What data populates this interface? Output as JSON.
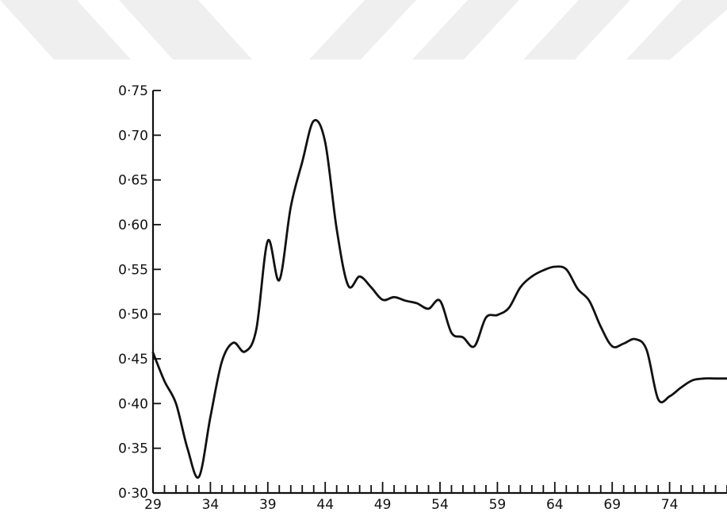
{
  "chart_data": {
    "type": "line",
    "title": "",
    "xlabel": "",
    "ylabel": "",
    "xlim": [
      29,
      79
    ],
    "ylim": [
      0.3,
      0.75
    ],
    "x_major_ticks": [
      29,
      34,
      39,
      44,
      49,
      54,
      59,
      64,
      69,
      74
    ],
    "x_tick_labels": [
      "29",
      "34",
      "39",
      "44",
      "49",
      "54",
      "59",
      "64",
      "69",
      "74"
    ],
    "y_ticks": [
      0.3,
      0.35,
      0.4,
      0.45,
      0.5,
      0.55,
      0.6,
      0.65,
      0.7,
      0.75
    ],
    "y_tick_labels": [
      "0·30",
      "0·35",
      "0·40",
      "0·45",
      "0·50",
      "0·55",
      "0·60",
      "0·65",
      "0·70",
      "0·75"
    ],
    "grid": false,
    "line_color": "#111111",
    "series": [
      {
        "x": [
          29,
          30,
          31,
          32,
          33,
          34,
          35,
          36,
          37,
          38,
          39,
          40,
          41,
          42,
          43,
          44,
          45,
          46,
          47,
          48,
          49,
          50,
          51,
          52,
          53,
          54,
          55,
          56,
          57,
          58,
          59,
          60,
          61,
          62,
          63,
          64,
          65,
          66,
          67,
          68,
          69,
          70,
          71,
          72,
          73,
          74,
          75,
          76,
          77,
          78,
          79
        ],
        "values": [
          0.457,
          0.425,
          0.4,
          0.35,
          0.318,
          0.385,
          0.447,
          0.468,
          0.458,
          0.483,
          0.582,
          0.538,
          0.62,
          0.67,
          0.716,
          0.692,
          0.595,
          0.532,
          0.542,
          0.53,
          0.516,
          0.519,
          0.515,
          0.512,
          0.506,
          0.515,
          0.479,
          0.474,
          0.464,
          0.496,
          0.499,
          0.507,
          0.53,
          0.542,
          0.549,
          0.553,
          0.55,
          0.528,
          0.515,
          0.486,
          0.464,
          0.467,
          0.472,
          0.46,
          0.405,
          0.408,
          0.418,
          0.426,
          0.428,
          0.428,
          0.428
        ]
      }
    ]
  }
}
